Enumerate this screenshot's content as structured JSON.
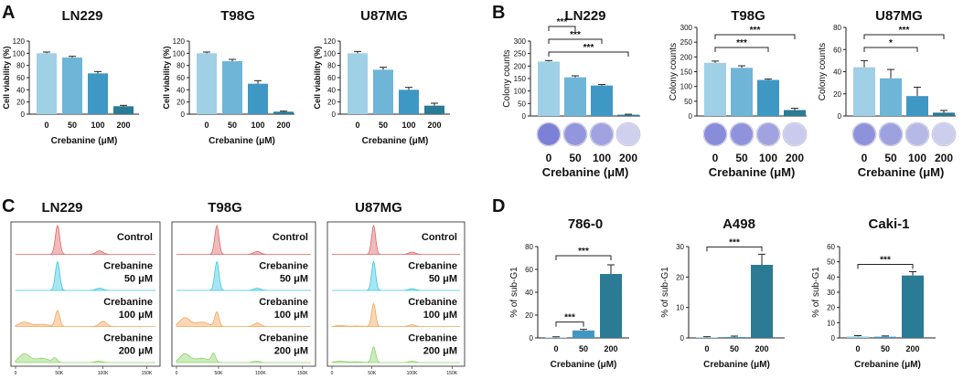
{
  "panel_labels": [
    "A",
    "B",
    "C",
    "D"
  ],
  "colors": {
    "bar_0": "#9fd0e6",
    "bar_1": "#6fb5d8",
    "bar_2": "#3f97c4",
    "bar_3": "#2a7b93",
    "axis": "#222222",
    "flow_control": "#e06666",
    "flow_50": "#3cc8e0",
    "flow_100": "#f2a65a",
    "flow_200": "#8fd46a",
    "colony_well": "#6a6fd0"
  },
  "chart_data": [
    {
      "id": "A-LN229",
      "type": "bar",
      "title": "LN229",
      "categories": [
        "0",
        "50",
        "100",
        "200"
      ],
      "values": [
        100,
        93,
        67,
        13
      ],
      "errors": [
        2,
        2,
        3,
        1.5
      ],
      "ylabel": "Cell viability (%)",
      "xlabel": "Crebanine  (μM)",
      "ylim": [
        0,
        120
      ],
      "yticks": [
        "0",
        "20",
        "40",
        "60",
        "80",
        "100",
        "120"
      ],
      "significance": []
    },
    {
      "id": "A-T98G",
      "type": "bar",
      "title": "T98G",
      "categories": [
        "0",
        "50",
        "100",
        "200"
      ],
      "values": [
        100,
        87,
        50,
        4
      ],
      "errors": [
        2,
        3,
        5,
        1
      ],
      "ylabel": "Cell viability (%)",
      "xlabel": "Crebanine  (μM)",
      "ylim": [
        0,
        120
      ],
      "yticks": [
        "0",
        "20",
        "40",
        "60",
        "80",
        "100",
        "120"
      ],
      "significance": []
    },
    {
      "id": "A-U87MG",
      "type": "bar",
      "title": "U87MG",
      "categories": [
        "0",
        "50",
        "100",
        "200"
      ],
      "values": [
        100,
        73,
        40,
        14
      ],
      "errors": [
        3,
        4,
        4,
        4
      ],
      "ylabel": "Cell viability (%)",
      "xlabel": "Crebanine  (μM)",
      "ylim": [
        0,
        120
      ],
      "yticks": [
        "0",
        "20",
        "40",
        "60",
        "80",
        "100",
        "120"
      ],
      "significance": []
    },
    {
      "id": "B-LN229",
      "type": "bar",
      "title": "LN229",
      "categories": [
        "0",
        "50",
        "100",
        "200"
      ],
      "values": [
        218,
        155,
        122,
        5
      ],
      "errors": [
        4,
        6,
        4,
        2
      ],
      "ylabel": "Colony counts",
      "xlabel": "Crebanine (μM)",
      "ylim": [
        0,
        300
      ],
      "yticks": [
        "0",
        "50",
        "100",
        "150",
        "200",
        "250",
        "300"
      ],
      "significance": [
        {
          "from": 0,
          "to": 1,
          "label": "***"
        },
        {
          "from": 0,
          "to": 2,
          "label": "***"
        },
        {
          "from": 0,
          "to": 3,
          "label": "***"
        }
      ]
    },
    {
      "id": "B-T98G",
      "type": "bar",
      "title": "T98G",
      "categories": [
        "0",
        "50",
        "100",
        "200"
      ],
      "values": [
        180,
        163,
        122,
        20
      ],
      "errors": [
        6,
        7,
        3,
        6
      ],
      "ylabel": "Colony counts",
      "xlabel": "Crebanine (μM)",
      "ylim": [
        0,
        300
      ],
      "yticks": [
        "0",
        "50",
        "100",
        "150",
        "200",
        "250",
        "300"
      ],
      "significance": [
        {
          "from": 0,
          "to": 2,
          "label": "***"
        },
        {
          "from": 0,
          "to": 3,
          "label": "***"
        }
      ]
    },
    {
      "id": "B-U87MG",
      "type": "bar",
      "title": "U87MG",
      "categories": [
        "0",
        "50",
        "100",
        "200"
      ],
      "values": [
        44,
        34,
        18,
        3
      ],
      "errors": [
        6,
        8,
        8,
        2
      ],
      "ylabel": "Colony counts",
      "xlabel": "Crebanine (μM)",
      "ylim": [
        0,
        80
      ],
      "yticks": [
        "0",
        "20",
        "40",
        "60",
        "80"
      ],
      "significance": [
        {
          "from": 0,
          "to": 2,
          "label": "*"
        },
        {
          "from": 0,
          "to": 3,
          "label": "***"
        }
      ]
    },
    {
      "id": "D-786-0",
      "type": "bar",
      "title": "786-0",
      "categories": [
        "0",
        "50",
        "200"
      ],
      "values": [
        0.5,
        6.5,
        56
      ],
      "errors": [
        0.5,
        1,
        8
      ],
      "ylabel": "% of sub-G1",
      "xlabel": "Crebanine (μM)",
      "ylim": [
        0,
        80
      ],
      "yticks": [
        "0",
        "20",
        "40",
        "60",
        "80"
      ],
      "significance": [
        {
          "from": 0,
          "to": 1,
          "label": "***"
        },
        {
          "from": 0,
          "to": 2,
          "label": "***"
        }
      ]
    },
    {
      "id": "D-A498",
      "type": "bar",
      "title": "A498",
      "categories": [
        "0",
        "50",
        "200"
      ],
      "values": [
        0.2,
        0.3,
        24
      ],
      "errors": [
        0.2,
        0.3,
        3.5
      ],
      "ylabel": "% of sub-G1",
      "xlabel": "Crebanine (μM)",
      "ylim": [
        0,
        30
      ],
      "yticks": [
        "0",
        "10",
        "20",
        "30"
      ],
      "significance": [
        {
          "from": 0,
          "to": 2,
          "label": "***"
        }
      ]
    },
    {
      "id": "D-Caki-1",
      "type": "bar",
      "title": "Caki-1",
      "categories": [
        "0",
        "50",
        "200"
      ],
      "values": [
        1,
        0.8,
        41
      ],
      "errors": [
        0.5,
        0.5,
        2.5
      ],
      "ylabel": "% of sub-G1",
      "xlabel": "Crebanine (μM)",
      "ylim": [
        0,
        60
      ],
      "yticks": [
        "0",
        "10",
        "20",
        "30",
        "40",
        "50",
        "60"
      ],
      "significance": [
        {
          "from": 0,
          "to": 2,
          "label": "***"
        }
      ]
    }
  ],
  "flow_panels": [
    {
      "title": "LN229",
      "xticks": [
        "0",
        "50K",
        "100K",
        "150K"
      ],
      "rows": [
        {
          "label_line1": "Control",
          "label_line2": "",
          "g1_peak": 48,
          "g2_peak": 96,
          "g1_height": 1.0,
          "g2_height": 0.12,
          "subg1": 0.0
        },
        {
          "label_line1": "Crebanine",
          "label_line2": "50 μM",
          "g1_peak": 48,
          "g2_peak": 96,
          "g1_height": 1.0,
          "g2_height": 0.08,
          "subg1": 0.0
        },
        {
          "label_line1": "Crebanine",
          "label_line2": "100 μM",
          "g1_peak": 48,
          "g2_peak": 100,
          "g1_height": 0.55,
          "g2_height": 0.18,
          "subg1": 0.15
        },
        {
          "label_line1": "Crebanine",
          "label_line2": "200 μM",
          "g1_peak": 45,
          "g2_peak": 95,
          "g1_height": 0.15,
          "g2_height": 0.05,
          "subg1": 0.3
        }
      ]
    },
    {
      "title": "T98G",
      "xticks": [
        "0",
        "50K",
        "100K",
        "150K"
      ],
      "rows": [
        {
          "label_line1": "Control",
          "label_line2": "",
          "g1_peak": 48,
          "g2_peak": 96,
          "g1_height": 1.0,
          "g2_height": 0.1,
          "subg1": 0.0
        },
        {
          "label_line1": "Crebanine",
          "label_line2": "50 μM",
          "g1_peak": 48,
          "g2_peak": 96,
          "g1_height": 1.0,
          "g2_height": 0.08,
          "subg1": 0.0
        },
        {
          "label_line1": "Crebanine",
          "label_line2": "100 μM",
          "g1_peak": 48,
          "g2_peak": 96,
          "g1_height": 0.5,
          "g2_height": 0.12,
          "subg1": 0.3
        },
        {
          "label_line1": "Crebanine",
          "label_line2": "200 μM",
          "g1_peak": 44,
          "g2_peak": 95,
          "g1_height": 0.3,
          "g2_height": 0.05,
          "subg1": 0.3
        }
      ]
    },
    {
      "title": "U87MG",
      "xticks": [
        "0",
        "50K",
        "100K",
        "150K"
      ],
      "rows": [
        {
          "label_line1": "Control",
          "label_line2": "",
          "g1_peak": 52,
          "g2_peak": 100,
          "g1_height": 1.0,
          "g2_height": 0.08,
          "subg1": 0.0
        },
        {
          "label_line1": "Crebanine",
          "label_line2": "50 μM",
          "g1_peak": 52,
          "g2_peak": 100,
          "g1_height": 1.0,
          "g2_height": 0.06,
          "subg1": 0.0
        },
        {
          "label_line1": "Crebanine",
          "label_line2": "100 μM",
          "g1_peak": 52,
          "g2_peak": 100,
          "g1_height": 0.8,
          "g2_height": 0.06,
          "subg1": 0.03
        },
        {
          "label_line1": "Crebanine",
          "label_line2": "200 μM",
          "g1_peak": 52,
          "g2_peak": 100,
          "g1_height": 0.55,
          "g2_height": 0.05,
          "subg1": 0.05
        }
      ]
    }
  ]
}
